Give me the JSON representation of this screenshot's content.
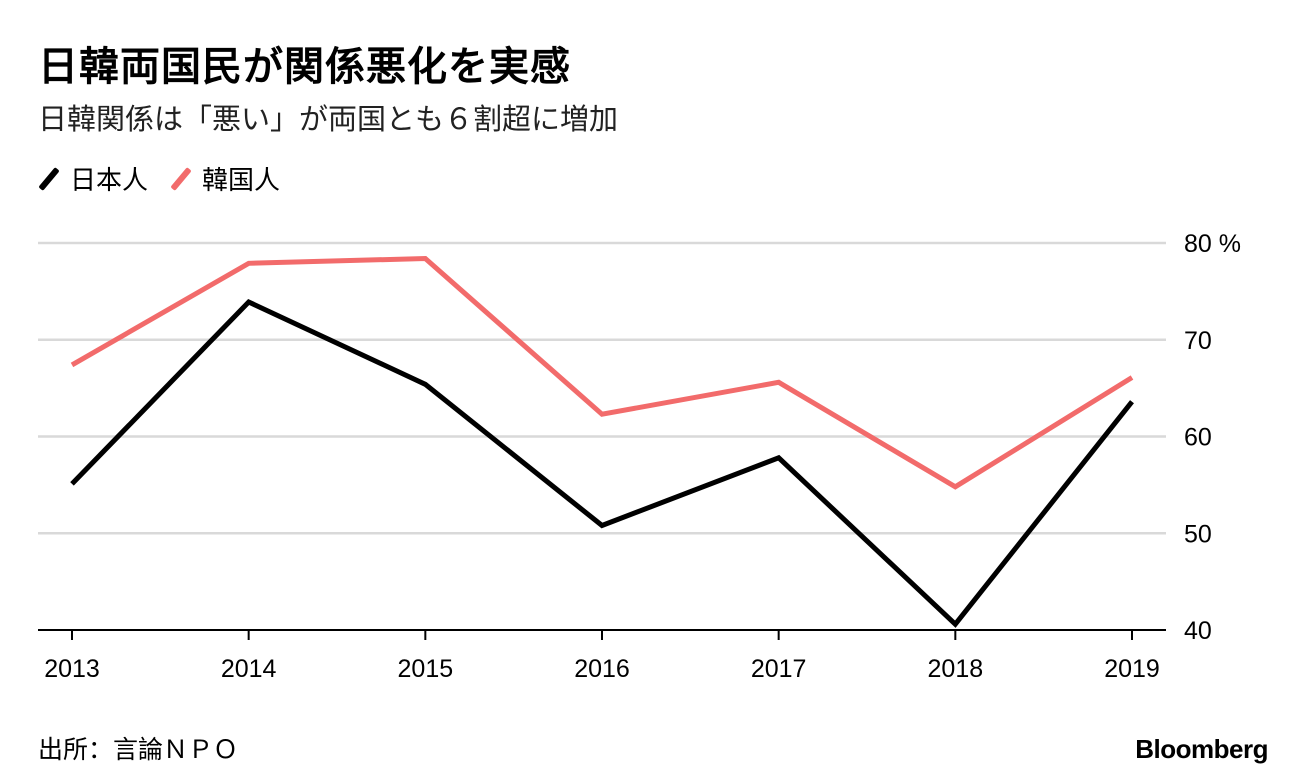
{
  "chart_data": {
    "type": "line",
    "title": "日韓両国民が関係悪化を実感",
    "subtitle": "日韓関係は「悪い」が両国とも６割超に増加",
    "categories": [
      "2013",
      "2014",
      "2015",
      "2016",
      "2017",
      "2018",
      "2019"
    ],
    "series": [
      {
        "name": "日本人",
        "color": "#000000",
        "values": [
          55.1,
          73.9,
          65.4,
          50.8,
          57.8,
          40.6,
          63.6
        ]
      },
      {
        "name": "韓国人",
        "color": "#f26b6b",
        "values": [
          67.4,
          77.9,
          78.4,
          62.3,
          65.6,
          54.8,
          66.1
        ]
      }
    ],
    "ylim": [
      40,
      80
    ],
    "yticks": [
      40,
      50,
      60,
      70,
      80
    ],
    "ytick_labels": [
      "40",
      "50",
      "60",
      "70",
      "80 %"
    ],
    "grid": true,
    "legend": "top-left"
  },
  "source": "出所：言論ＮＰＯ",
  "logo": "Bloomberg"
}
